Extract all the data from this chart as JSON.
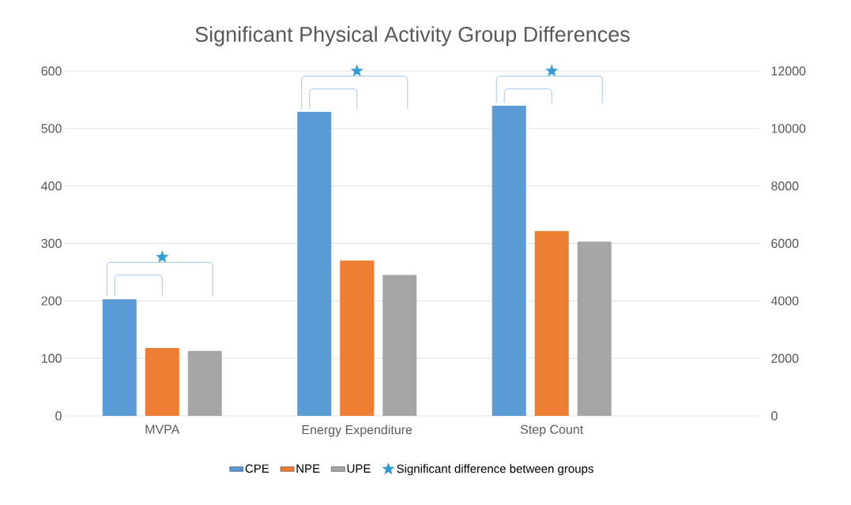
{
  "chart_data": {
    "type": "bar",
    "title": "Significant Physical Activity Group Differences",
    "categories": [
      "MVPA",
      "Energy Expenditure",
      "Step Count"
    ],
    "series": [
      {
        "name": "CPE",
        "color": "#5b9bd5",
        "values": [
          203,
          529,
          null
        ]
      },
      {
        "name": "NPE",
        "color": "#ed7d31",
        "values": [
          118,
          270,
          null
        ]
      },
      {
        "name": "UPE",
        "color": "#a5a5a5",
        "values": [
          113,
          245,
          null
        ]
      },
      {
        "color": "#5b9bd5",
        "values": [
          null,
          null,
          10790
        ],
        "axis": "y2"
      },
      {
        "color": "#ed7d31",
        "values": [
          null,
          null,
          6430
        ],
        "axis": "y2"
      },
      {
        "color": "#a5a5a5",
        "values": [
          null,
          null,
          6060
        ],
        "axis": "y2"
      },
      {
        "name": "Significant difference between groups",
        "type": "scatter",
        "color": "#2e9bd6",
        "marker": "star",
        "values": [
          276,
          600,
          null
        ]
      },
      {
        "type": "scatter",
        "color": "#2e9bd6",
        "marker": "star",
        "axis": "y2",
        "values": [
          null,
          null,
          12000
        ]
      }
    ],
    "ylim": [
      0,
      600
    ],
    "yticks": [
      0,
      100,
      200,
      300,
      400,
      500,
      600
    ],
    "y2lim": [
      0,
      12000
    ],
    "y2ticks": [
      0,
      2000,
      4000,
      6000,
      8000,
      10000,
      12000
    ],
    "grid": "y",
    "legend": "bottom"
  }
}
